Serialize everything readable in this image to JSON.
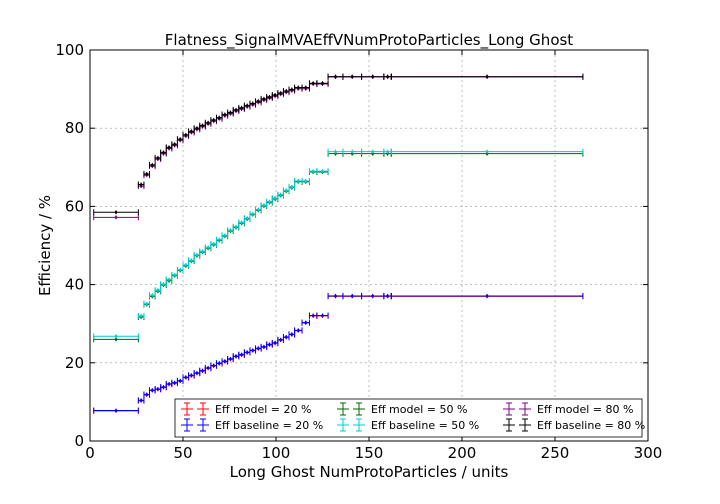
{
  "chart_data": {
    "type": "scatter",
    "title": "Flatness_SignalMVAEffVNumProtoParticles_Long Ghost",
    "xlabel": "Long Ghost NumProtoParticles / units",
    "ylabel": "Efficiency / %",
    "xlim": [
      0,
      300
    ],
    "ylim": [
      0,
      100
    ],
    "xticks": [
      0,
      50,
      100,
      150,
      200,
      250,
      300
    ],
    "yticks": [
      0,
      20,
      40,
      60,
      80,
      100
    ],
    "grid": true,
    "legend_position": "lower-right",
    "bin_edges": [
      2,
      26,
      29,
      32,
      35,
      38,
      41,
      44,
      47,
      50,
      53,
      56,
      59,
      62,
      65,
      68,
      71,
      74,
      77,
      80,
      83,
      86,
      89,
      92,
      95,
      98,
      101,
      104,
      107,
      110,
      114,
      118,
      122,
      128,
      136,
      146,
      158,
      162,
      265
    ],
    "series": [
      {
        "name": "Eff model = 20 %",
        "color": "#ff0000",
        "values": [
          7.7,
          10.3,
          11.8,
          12.9,
          13.2,
          13.7,
          14.5,
          14.8,
          15.3,
          16.2,
          16.7,
          17.3,
          17.9,
          18.6,
          19.2,
          19.8,
          20.3,
          20.9,
          21.6,
          22.0,
          22.6,
          23.1,
          23.6,
          24.0,
          24.6,
          25.0,
          25.8,
          26.5,
          27.2,
          28.2,
          30.2,
          32.0,
          32.0,
          37.0,
          37.0,
          37.0,
          37.0,
          37.0
        ]
      },
      {
        "name": "Eff baseline = 20 %",
        "color": "#0000ff",
        "values": [
          7.8,
          10.4,
          11.9,
          13.0,
          13.3,
          13.8,
          14.6,
          14.9,
          15.4,
          16.3,
          16.8,
          17.4,
          18.0,
          18.7,
          19.3,
          19.9,
          20.4,
          21.0,
          21.7,
          22.1,
          22.7,
          23.2,
          23.7,
          24.1,
          24.7,
          25.1,
          25.9,
          26.6,
          27.3,
          28.3,
          30.3,
          32.1,
          32.1,
          37.1,
          37.1,
          37.1,
          37.1,
          37.1
        ]
      },
      {
        "name": "Eff model = 50 %",
        "color": "#006400",
        "values": [
          26.0,
          31.7,
          34.9,
          37.0,
          38.3,
          39.9,
          41.0,
          42.3,
          43.6,
          44.8,
          46.0,
          47.4,
          48.3,
          49.3,
          50.2,
          51.3,
          52.4,
          53.7,
          54.6,
          55.7,
          56.8,
          57.9,
          59.0,
          60.1,
          61.0,
          61.9,
          62.8,
          63.9,
          64.8,
          66.3,
          66.3,
          68.8,
          68.8,
          73.5,
          73.5,
          73.5,
          73.5,
          73.5
        ]
      },
      {
        "name": "Eff baseline = 50 %",
        "color": "#00ced1",
        "values": [
          26.8,
          32.0,
          35.1,
          37.3,
          38.6,
          40.1,
          41.3,
          42.5,
          43.8,
          45.0,
          46.2,
          47.6,
          48.5,
          49.5,
          50.4,
          51.5,
          52.6,
          53.9,
          54.8,
          55.9,
          57.0,
          58.1,
          59.2,
          60.3,
          61.2,
          62.1,
          63.0,
          64.1,
          65.0,
          66.5,
          66.5,
          69.0,
          69.0,
          74.0,
          74.0,
          74.0,
          74.0,
          74.0
        ]
      },
      {
        "name": "Eff model = 80 %",
        "color": "#800080",
        "values": [
          57.2,
          65.2,
          68.0,
          70.3,
          72.1,
          73.5,
          74.8,
          75.6,
          76.9,
          78.0,
          78.9,
          79.7,
          80.4,
          81.1,
          81.8,
          82.4,
          83.2,
          83.7,
          84.4,
          84.9,
          85.5,
          86.0,
          86.6,
          87.2,
          87.7,
          88.2,
          88.7,
          89.2,
          89.6,
          90.1,
          90.1,
          91.3,
          91.3,
          93.1,
          93.1,
          93.1,
          93.1,
          93.1
        ]
      },
      {
        "name": "Eff baseline = 80 %",
        "color": "#000000",
        "values": [
          58.5,
          65.6,
          68.3,
          70.6,
          72.4,
          73.8,
          75.1,
          75.9,
          77.2,
          78.3,
          79.2,
          80.0,
          80.7,
          81.4,
          82.1,
          82.7,
          83.5,
          84.0,
          84.7,
          85.2,
          85.8,
          86.3,
          86.9,
          87.5,
          88.0,
          88.5,
          89.0,
          89.5,
          89.9,
          90.4,
          90.4,
          91.5,
          91.5,
          93.2,
          93.2,
          93.2,
          93.2,
          93.2
        ]
      }
    ]
  }
}
